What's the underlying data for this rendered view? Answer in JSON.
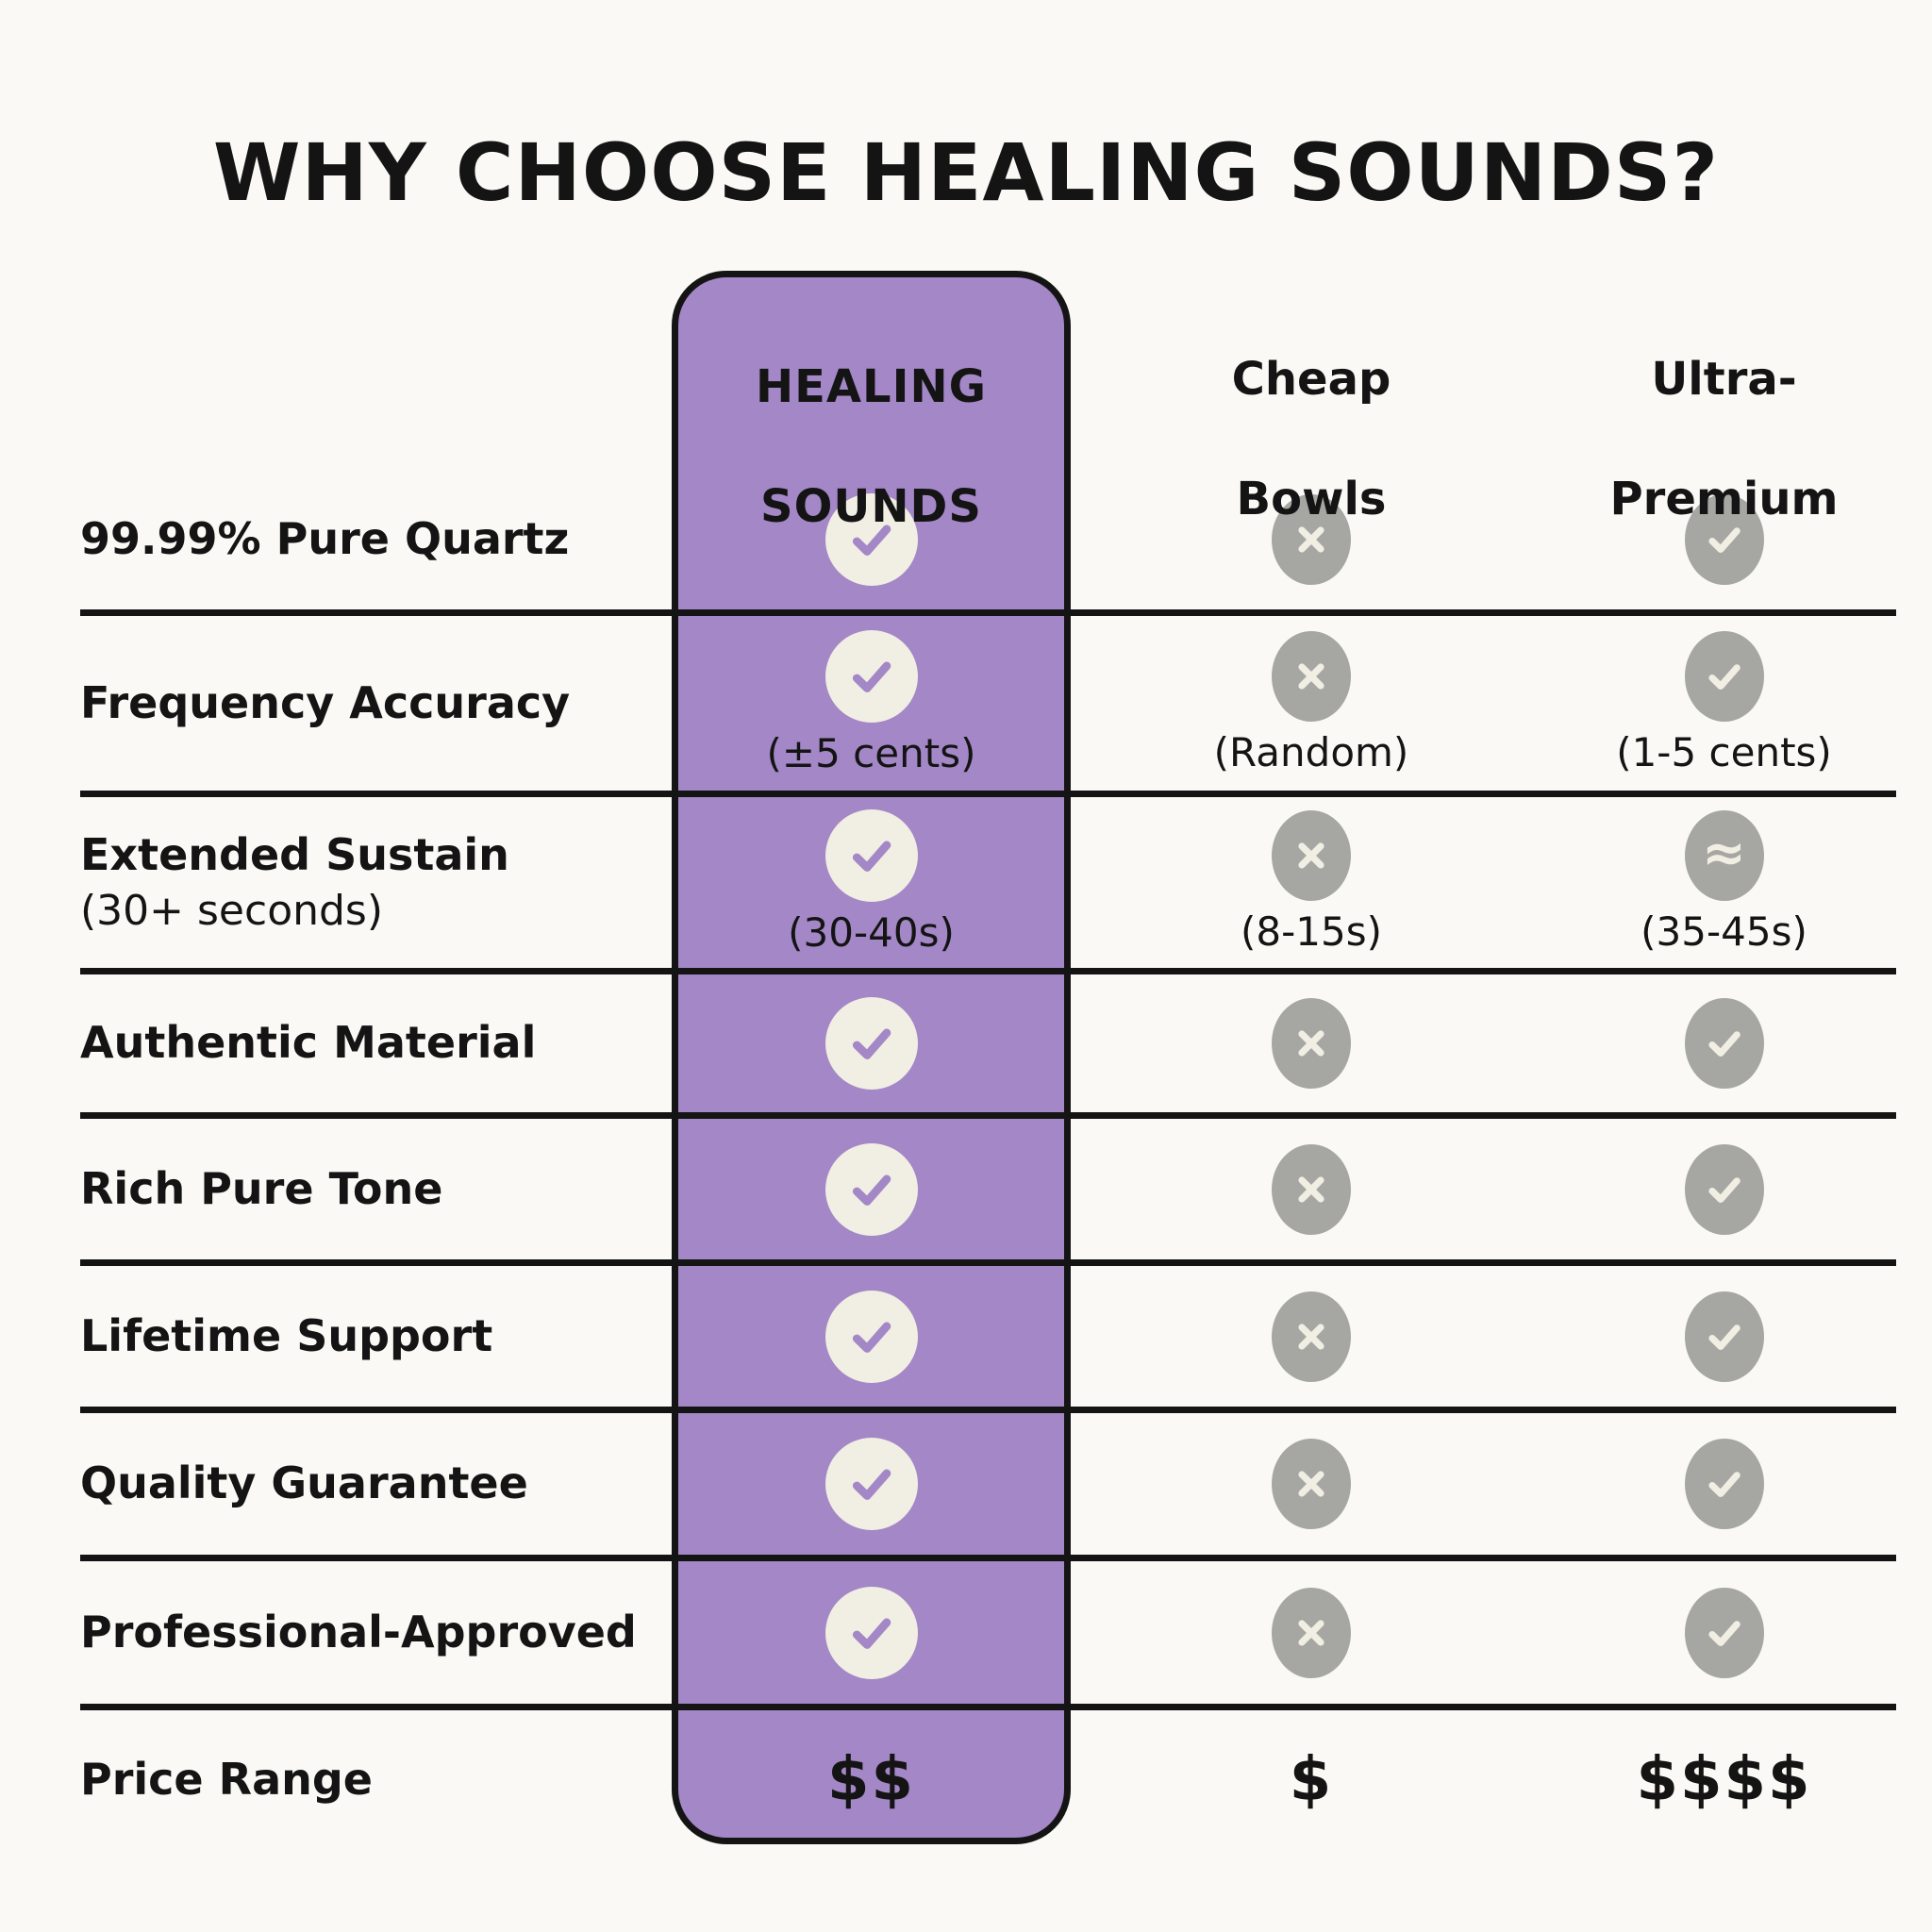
{
  "title": "WHY CHOOSE HEALING SOUNDS?",
  "columns": {
    "healing": {
      "line1": "HEALING",
      "line2": "SOUNDS"
    },
    "cheap": {
      "line1": "Cheap",
      "line2": "Bowls"
    },
    "ultra": {
      "line1": "Ultra-",
      "line2": "Premium"
    }
  },
  "rows": [
    {
      "label": "99.99% Pure Quartz",
      "sublabel": "",
      "cells": {
        "healing": {
          "icon": "check",
          "note": ""
        },
        "cheap": {
          "icon": "x",
          "note": ""
        },
        "ultra": {
          "icon": "check",
          "note": ""
        }
      }
    },
    {
      "label": "Frequency Accuracy",
      "sublabel": "",
      "cells": {
        "healing": {
          "icon": "check",
          "note": "(±5 cents)"
        },
        "cheap": {
          "icon": "x",
          "note": "(Random)"
        },
        "ultra": {
          "icon": "check",
          "note": "(1-5 cents)"
        }
      }
    },
    {
      "label": "Extended Sustain",
      "sublabel": "(30+ seconds)",
      "cells": {
        "healing": {
          "icon": "check",
          "note": "(30-40s)"
        },
        "cheap": {
          "icon": "x",
          "note": "(8-15s)"
        },
        "ultra": {
          "icon": "approx",
          "note": "(35-45s)"
        }
      }
    },
    {
      "label": "Authentic Material",
      "sublabel": "",
      "cells": {
        "healing": {
          "icon": "check",
          "note": ""
        },
        "cheap": {
          "icon": "x",
          "note": ""
        },
        "ultra": {
          "icon": "check",
          "note": ""
        }
      }
    },
    {
      "label": "Rich Pure Tone",
      "sublabel": "",
      "cells": {
        "healing": {
          "icon": "check",
          "note": ""
        },
        "cheap": {
          "icon": "x",
          "note": ""
        },
        "ultra": {
          "icon": "check",
          "note": ""
        }
      }
    },
    {
      "label": "Lifetime Support",
      "sublabel": "",
      "cells": {
        "healing": {
          "icon": "check",
          "note": ""
        },
        "cheap": {
          "icon": "x",
          "note": ""
        },
        "ultra": {
          "icon": "check",
          "note": ""
        }
      }
    },
    {
      "label": "Quality Guarantee",
      "sublabel": "",
      "cells": {
        "healing": {
          "icon": "check",
          "note": ""
        },
        "cheap": {
          "icon": "x",
          "note": ""
        },
        "ultra": {
          "icon": "check",
          "note": ""
        }
      }
    },
    {
      "label": "Professional-Approved",
      "sublabel": "",
      "cells": {
        "healing": {
          "icon": "check",
          "note": ""
        },
        "cheap": {
          "icon": "x",
          "note": ""
        },
        "ultra": {
          "icon": "check",
          "note": ""
        }
      }
    },
    {
      "label": "Price Range",
      "sublabel": "",
      "cells": {
        "healing": {
          "icon": "price",
          "note": "$$"
        },
        "cheap": {
          "icon": "price",
          "note": "$"
        },
        "ultra": {
          "icon": "price",
          "note": "$$$$"
        }
      }
    }
  ],
  "colors": {
    "background": "#fbf9f5",
    "brand_purple": "#a387c6",
    "circle_light": "#f1eee3",
    "circle_gray": "#a6a7a2",
    "line_black": "#141414"
  }
}
